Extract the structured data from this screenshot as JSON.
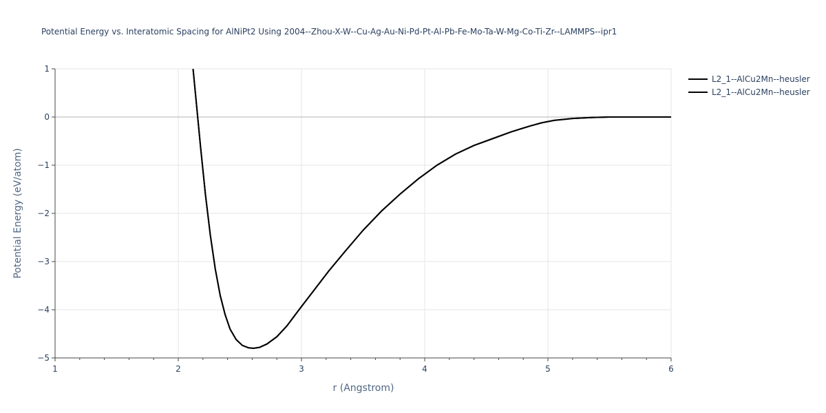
{
  "chart_data": {
    "type": "line",
    "title": "Potential Energy vs. Interatomic Spacing for AlNiPt2 Using 2004--Zhou-X-W--Cu-Ag-Au-Ni-Pd-Pt-Al-Pb-Fe-Mo-Ta-W-Mg-Co-Ti-Zr--LAMMPS--ipr1",
    "xlabel": "r (Angstrom)",
    "ylabel": "Potential Energy (eV/atom)",
    "xlim": [
      1,
      6
    ],
    "ylim": [
      -5,
      1
    ],
    "xticks": [
      1,
      2,
      3,
      4,
      5,
      6
    ],
    "yticks": [
      1,
      0,
      -1,
      -2,
      -3,
      -4,
      -5
    ],
    "xtick_labels": [
      "1",
      "2",
      "3",
      "4",
      "5",
      "6"
    ],
    "ytick_labels": [
      "1",
      "0",
      "−1",
      "−2",
      "−3",
      "−4",
      "−5"
    ],
    "grid": true,
    "legend_position": "top-right",
    "series": [
      {
        "name": "L2_1--AlCu2Mn--heusler",
        "color": "#000000",
        "x": [
          2.12,
          2.15,
          2.18,
          2.22,
          2.26,
          2.3,
          2.34,
          2.38,
          2.42,
          2.47,
          2.52,
          2.57,
          2.61,
          2.66,
          2.72,
          2.8,
          2.88,
          2.98,
          3.1,
          3.22,
          3.35,
          3.5,
          3.65,
          3.8,
          3.95,
          4.1,
          4.25,
          4.4,
          4.55,
          4.7,
          4.85,
          4.95,
          5.05,
          5.2,
          5.35,
          5.5,
          5.7,
          6.0
        ],
        "y": [
          1.0,
          0.2,
          -0.6,
          -1.6,
          -2.45,
          -3.15,
          -3.7,
          -4.1,
          -4.4,
          -4.62,
          -4.74,
          -4.79,
          -4.8,
          -4.78,
          -4.71,
          -4.56,
          -4.34,
          -4.0,
          -3.6,
          -3.2,
          -2.8,
          -2.35,
          -1.95,
          -1.6,
          -1.28,
          -1.0,
          -0.77,
          -0.59,
          -0.45,
          -0.31,
          -0.19,
          -0.12,
          -0.07,
          -0.03,
          -0.01,
          0.0,
          0.0,
          0.0
        ]
      },
      {
        "name": "L2_1--AlCu2Mn--heusler",
        "color": "#000000",
        "x": [
          2.12,
          2.15,
          2.18,
          2.22,
          2.26,
          2.3,
          2.34,
          2.38,
          2.42,
          2.47,
          2.52,
          2.57,
          2.61,
          2.66,
          2.72,
          2.8,
          2.88,
          2.98,
          3.1,
          3.22,
          3.35,
          3.5,
          3.65,
          3.8,
          3.95,
          4.1,
          4.25,
          4.4,
          4.55,
          4.7,
          4.85,
          4.95,
          5.05,
          5.2,
          5.35,
          5.5,
          5.7,
          6.0
        ],
        "y": [
          1.0,
          0.2,
          -0.6,
          -1.6,
          -2.45,
          -3.15,
          -3.7,
          -4.1,
          -4.4,
          -4.62,
          -4.74,
          -4.79,
          -4.8,
          -4.78,
          -4.71,
          -4.56,
          -4.34,
          -4.0,
          -3.6,
          -3.2,
          -2.8,
          -2.35,
          -1.95,
          -1.6,
          -1.28,
          -1.0,
          -0.77,
          -0.59,
          -0.45,
          -0.31,
          -0.19,
          -0.12,
          -0.07,
          -0.03,
          -0.01,
          0.0,
          0.0,
          0.0
        ]
      }
    ]
  }
}
